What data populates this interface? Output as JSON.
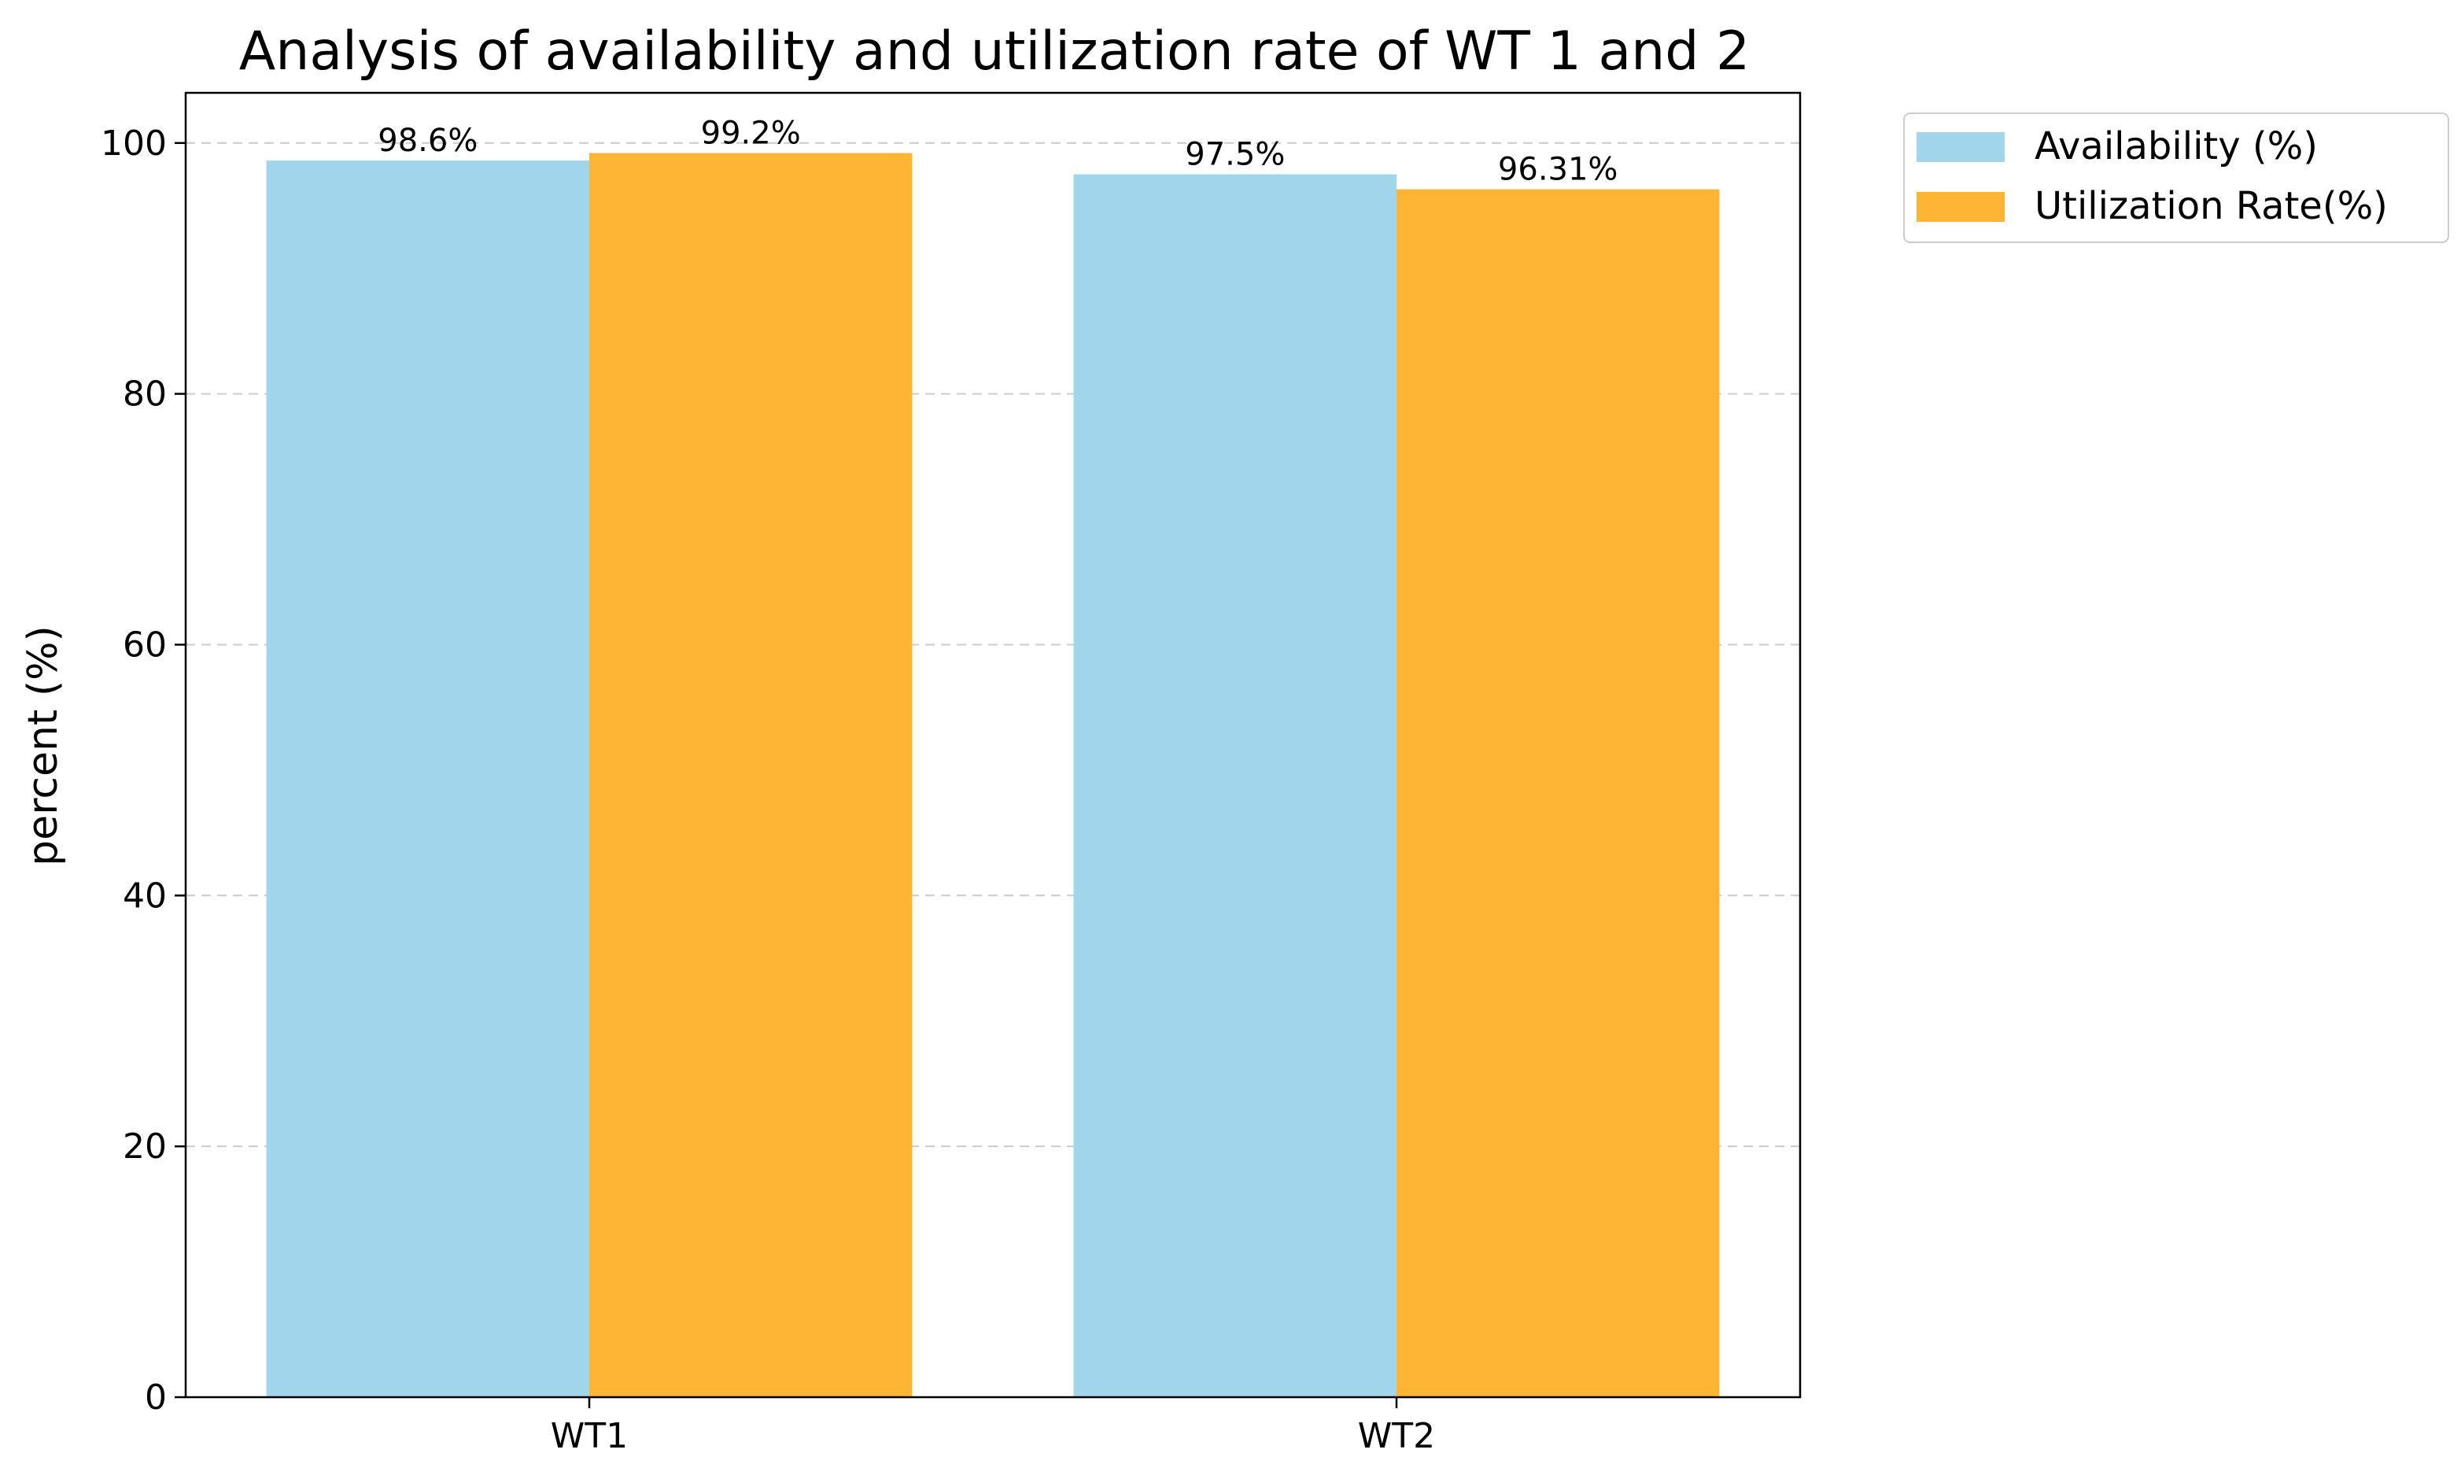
{
  "chart_data": {
    "type": "bar",
    "title": "Analysis of availability and utilization rate of WT 1 and 2",
    "xlabel": "",
    "ylabel": "percent (%)",
    "categories": [
      "WT1",
      "WT2"
    ],
    "series": [
      {
        "name": "Availability (%)",
        "values": [
          98.6,
          97.5
        ],
        "labels": [
          "98.6%",
          "97.5%"
        ],
        "color": "#a0d5ec"
      },
      {
        "name": "Utilization Rate(%)",
        "values": [
          99.2,
          96.31
        ],
        "labels": [
          "99.2%",
          "96.31%"
        ],
        "color": "#feb533"
      }
    ],
    "ylim": [
      0,
      104
    ],
    "yticks": [
      0,
      20,
      40,
      60,
      80,
      100
    ],
    "grid": "y-dashed",
    "legend": "outside-top-right"
  }
}
